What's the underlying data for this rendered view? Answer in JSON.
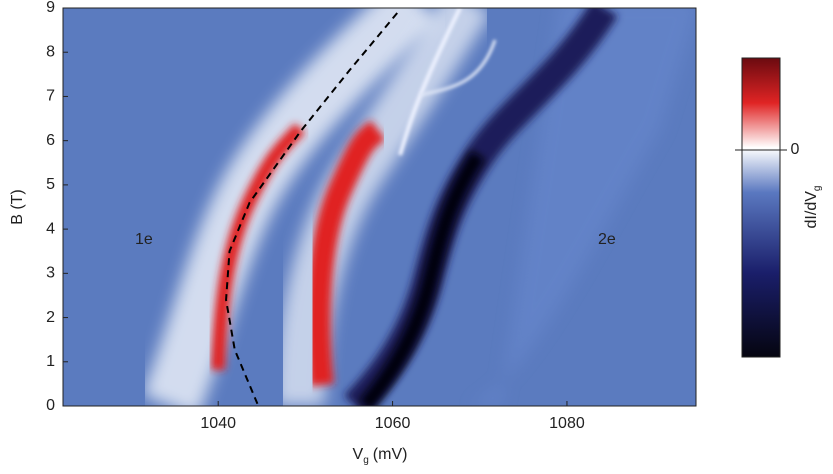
{
  "chart_data": {
    "type": "line",
    "xlabel": "V",
    "xlabel_sub": "g",
    "xlabel_unit": "(mV)",
    "ylabel": "B (T)",
    "xlim": [
      1022.2,
      1094.8
    ],
    "xticks": [
      1040,
      1060,
      1080
    ],
    "ylim": [
      0,
      9
    ],
    "yticks": [
      0,
      1,
      2,
      3,
      4,
      5,
      6,
      7,
      8,
      9
    ],
    "annotations": [
      "1e",
      "2e"
    ],
    "series": [
      {
        "color": "#000000",
        "dash": true,
        "x": [
          1044.5,
          1041.9,
          1040.9,
          1041.3,
          1043.6,
          1049.4,
          1055.1,
          1060.8
        ],
        "values": [
          0.05,
          1.27,
          2.4,
          3.5,
          4.6,
          6.2,
          7.6,
          8.95
        ]
      }
    ],
    "colorbar": {
      "label": "dI/dV",
      "label_sub": "g",
      "lim": [
        -2.25,
        1
      ],
      "ticks": [
        0
      ]
    }
  }
}
